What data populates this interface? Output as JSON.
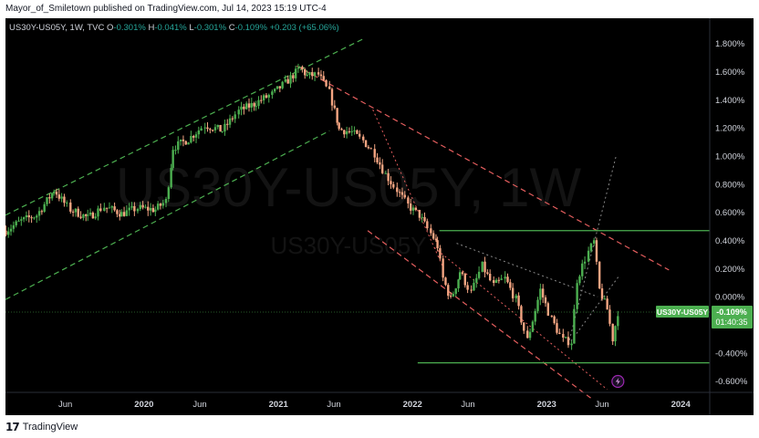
{
  "header": {
    "publisher_line": "Mayor_of_Smiletown published on TradingView.com, Jul 14, 2023 15:19 UTC-4"
  },
  "legend": {
    "symbol": "US30Y-US05Y, 1W, TVC",
    "ohlc": [
      {
        "label": "O",
        "value": "-0.301%"
      },
      {
        "label": "H",
        "value": "-0.041%"
      },
      {
        "label": "L",
        "value": "-0.301%"
      },
      {
        "label": "C",
        "value": "-0.109%"
      }
    ],
    "change": "+0.203 (+65.06%)"
  },
  "watermark": {
    "big": "US30Y-US05Y, 1W",
    "small": "US30Y-US05Y"
  },
  "price_tag": {
    "symbol": "US30Y-US05Y",
    "value": "-0.109%",
    "countdown": "01:40:35"
  },
  "footer": {
    "logo_mark": "17",
    "brand": "TradingView"
  },
  "colors": {
    "background": "#000000",
    "up": "#26a69a",
    "down": "#ef9a7a",
    "up_candle": "#4caf50",
    "down_candle": "#f4a582",
    "channel_green": "#4caf50",
    "channel_red": "#e35d5d",
    "support_line": "#4caf50",
    "axis_text": "#d1d4dc",
    "tag": "#4caf50"
  },
  "chart_data": {
    "type": "candlestick",
    "title": "US30Y-US05Y, 1W, TVC",
    "ylabel": "",
    "xlabel": "",
    "grid": false,
    "ylim": [
      -0.68,
      1.98
    ],
    "y_ticks": [
      "1.800%",
      "1.600%",
      "1.400%",
      "1.200%",
      "1.000%",
      "0.800%",
      "0.600%",
      "0.400%",
      "0.200%",
      "0.000%",
      "-0.200%",
      "-0.400%",
      "-0.600%"
    ],
    "x_ticks": [
      "Jun",
      "2020",
      "Jun",
      "2021",
      "Jun",
      "2022",
      "Jun",
      "2023",
      "Jun",
      "2024"
    ],
    "x_tick_dates": [
      "2019-06",
      "2020-01",
      "2020-06",
      "2021-01",
      "2021-06",
      "2022-01",
      "2022-06",
      "2023-01",
      "2023-06",
      "2024-01"
    ],
    "xlim": [
      "2018-12-20",
      "2024-03-20"
    ],
    "series": [
      {
        "name": "US30Y-US05Y",
        "points": [
          [
            "2018-12-21",
            0.47
          ],
          [
            "2019-02-01",
            0.54
          ],
          [
            "2019-03-15",
            0.58
          ],
          [
            "2019-05-01",
            0.76
          ],
          [
            "2019-06-15",
            0.62
          ],
          [
            "2019-08-01",
            0.56
          ],
          [
            "2019-09-15",
            0.64
          ],
          [
            "2019-11-01",
            0.59
          ],
          [
            "2019-12-15",
            0.63
          ],
          [
            "2020-02-01",
            0.62
          ],
          [
            "2020-03-01",
            0.68
          ],
          [
            "2020-03-20",
            1.06
          ],
          [
            "2020-05-01",
            1.12
          ],
          [
            "2020-06-15",
            1.22
          ],
          [
            "2020-08-01",
            1.18
          ],
          [
            "2020-09-15",
            1.32
          ],
          [
            "2020-11-01",
            1.38
          ],
          [
            "2020-12-15",
            1.44
          ],
          [
            "2021-01-20",
            1.52
          ],
          [
            "2021-02-28",
            1.63
          ],
          [
            "2021-03-20",
            1.57
          ],
          [
            "2021-04-20",
            1.58
          ],
          [
            "2021-05-20",
            1.45
          ],
          [
            "2021-06-15",
            1.19
          ],
          [
            "2021-07-20",
            1.17
          ],
          [
            "2021-08-20",
            1.11
          ],
          [
            "2021-09-20",
            1.02
          ],
          [
            "2021-10-20",
            0.87
          ],
          [
            "2021-11-20",
            0.76
          ],
          [
            "2021-12-20",
            0.65
          ],
          [
            "2022-01-20",
            0.58
          ],
          [
            "2022-02-20",
            0.45
          ],
          [
            "2022-03-10",
            0.36
          ],
          [
            "2022-03-25",
            0.13
          ],
          [
            "2022-04-15",
            -0.02
          ],
          [
            "2022-05-10",
            0.18
          ],
          [
            "2022-06-10",
            0.03
          ],
          [
            "2022-07-10",
            0.22
          ],
          [
            "2022-08-10",
            0.08
          ],
          [
            "2022-09-10",
            0.13
          ],
          [
            "2022-10-10",
            -0.02
          ],
          [
            "2022-11-10",
            -0.31
          ],
          [
            "2022-12-15",
            0.05
          ],
          [
            "2023-01-15",
            -0.16
          ],
          [
            "2023-02-15",
            -0.31
          ],
          [
            "2023-03-10",
            -0.32
          ],
          [
            "2023-03-25",
            0.12
          ],
          [
            "2023-04-25",
            0.32
          ],
          [
            "2023-05-10",
            0.39
          ],
          [
            "2023-05-25",
            0.05
          ],
          [
            "2023-06-15",
            -0.09
          ],
          [
            "2023-06-30",
            -0.3
          ],
          [
            "2023-07-14",
            -0.109
          ]
        ]
      }
    ],
    "annotations": {
      "horizontal_lines": [
        0.47,
        -0.47
      ]
    }
  }
}
